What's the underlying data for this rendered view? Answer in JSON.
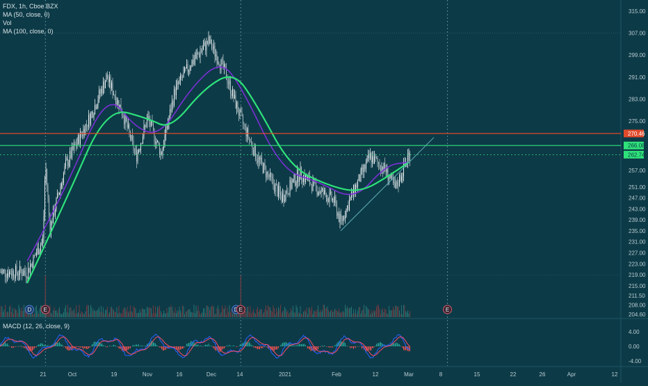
{
  "symbol_line": "FDX, 1h, Cboe BZX",
  "indicator_lines": [
    "MA (50, close, 0)",
    "Vol",
    "MA (100, close, 0)"
  ],
  "macd_label": "MACD (12, 26, close, 9)",
  "colors": {
    "background": "#0d3a47",
    "ma50": "#7b2fd6",
    "ma100": "#2ee27a",
    "resistance_line": "#e04a2a",
    "support_line": "#2ee27a",
    "trendline": "#5fb0b8",
    "up_candle": "#e8eef0",
    "down_candle": "#aebdc2",
    "macd_line": "#2962ff",
    "signal_line": "#ff4d6a",
    "hist_up": "#26a69a",
    "hist_down": "#ef5350"
  },
  "chart_data": {
    "type": "candlestick",
    "symbol": "FDX",
    "interval": "1h",
    "exchange": "Cboe BZX",
    "price_ticks": [
      "315.00",
      "307.00",
      "299.00",
      "291.00",
      "283.00",
      "275.00",
      "270.46",
      "266.08",
      "262.74",
      "257.00",
      "251.00",
      "247.00",
      "243.00",
      "239.00",
      "235.00",
      "231.00",
      "227.00",
      "223.00",
      "219.00",
      "215.00",
      "211.50",
      "208.00",
      "204.60"
    ],
    "price_range": [
      204.6,
      315.0
    ],
    "x_tick_labels": [
      "21",
      "Oct",
      "19",
      "Nov",
      "16",
      "Dec",
      "14",
      "2021",
      "Feb",
      "12",
      "Mar",
      "8",
      "15",
      "22",
      "26",
      "Apr",
      "12"
    ],
    "price_points": [
      {
        "x": "Sep 14",
        "price": 220
      },
      {
        "x": "Sep 21",
        "price": 232
      },
      {
        "x": "Sep 22",
        "price": 260
      },
      {
        "x": "Sep 24",
        "price": 236
      },
      {
        "x": "Oct 1",
        "price": 259
      },
      {
        "x": "Oct 12",
        "price": 277
      },
      {
        "x": "Oct 19",
        "price": 291
      },
      {
        "x": "Oct 26",
        "price": 278
      },
      {
        "x": "Nov 1",
        "price": 262
      },
      {
        "x": "Nov 6",
        "price": 276
      },
      {
        "x": "Nov 12",
        "price": 263
      },
      {
        "x": "Nov 18",
        "price": 286
      },
      {
        "x": "Nov 25",
        "price": 296
      },
      {
        "x": "Dec 3",
        "price": 304
      },
      {
        "x": "Dec 10",
        "price": 293
      },
      {
        "x": "Dec 17",
        "price": 276
      },
      {
        "x": "Dec 24",
        "price": 262
      },
      {
        "x": "Jan 4",
        "price": 247
      },
      {
        "x": "Jan 12",
        "price": 256
      },
      {
        "x": "Jan 20",
        "price": 250
      },
      {
        "x": "Jan 27",
        "price": 246
      },
      {
        "x": "Jan 30",
        "price": 238
      },
      {
        "x": "Feb 5",
        "price": 250
      },
      {
        "x": "Feb 12",
        "price": 262
      },
      {
        "x": "Feb 19",
        "price": 257
      },
      {
        "x": "Feb 23",
        "price": 250
      },
      {
        "x": "Mar 1",
        "price": 262.74
      }
    ],
    "series": [
      {
        "name": "MA (50, close, 0)",
        "points": [
          {
            "x": "Sep 14",
            "price": 224
          },
          {
            "x": "Oct 1",
            "price": 250
          },
          {
            "x": "Oct 19",
            "price": 286
          },
          {
            "x": "Nov 1",
            "price": 272
          },
          {
            "x": "Nov 12",
            "price": 270
          },
          {
            "x": "Nov 25",
            "price": 287
          },
          {
            "x": "Dec 8",
            "price": 297
          },
          {
            "x": "Dec 17",
            "price": 288
          },
          {
            "x": "Jan 4",
            "price": 257
          },
          {
            "x": "Jan 20",
            "price": 253
          },
          {
            "x": "Feb 5",
            "price": 246
          },
          {
            "x": "Feb 19",
            "price": 259
          },
          {
            "x": "Mar 1",
            "price": 260
          }
        ]
      },
      {
        "name": "MA (100, close, 0)",
        "points": [
          {
            "x": "Sep 14",
            "price": 216
          },
          {
            "x": "Oct 1",
            "price": 246
          },
          {
            "x": "Oct 19",
            "price": 280
          },
          {
            "x": "Nov 6",
            "price": 276
          },
          {
            "x": "Nov 16",
            "price": 272
          },
          {
            "x": "Dec 1",
            "price": 287
          },
          {
            "x": "Dec 14",
            "price": 293
          },
          {
            "x": "Dec 24",
            "price": 281
          },
          {
            "x": "Jan 8",
            "price": 258
          },
          {
            "x": "Jan 26",
            "price": 251
          },
          {
            "x": "Feb 8",
            "price": 249
          },
          {
            "x": "Feb 22",
            "price": 256
          },
          {
            "x": "Mar 1",
            "price": 260
          }
        ]
      }
    ],
    "horizontal_lines": [
      {
        "price": 270.46,
        "label": "270.46",
        "color": "#e04a2a"
      },
      {
        "price": 266.08,
        "label": "266.08",
        "color": "#2ee27a"
      },
      {
        "price": 262.74,
        "label": "262.74",
        "color": "#2ee27a",
        "style": "dashed"
      }
    ],
    "trendline": [
      {
        "x": "Jan 30",
        "price": 235
      },
      {
        "x": "Mar 12",
        "price": 269
      }
    ],
    "event_markers": [
      {
        "x": "Sep 15",
        "label": "D"
      },
      {
        "x": "Sep 22",
        "label": "E"
      },
      {
        "x": "Dec 15",
        "label": "D"
      },
      {
        "x": "Dec 17",
        "label": "E"
      },
      {
        "x": "Mar 18",
        "label": "E"
      }
    ],
    "macd": {
      "label": "MACD (12, 26, close, 9)",
      "ticks": [
        "4.00",
        "0.00",
        "-4.00"
      ],
      "range": [
        -6,
        6
      ]
    },
    "grid": "dotted-vertical-at-events"
  }
}
